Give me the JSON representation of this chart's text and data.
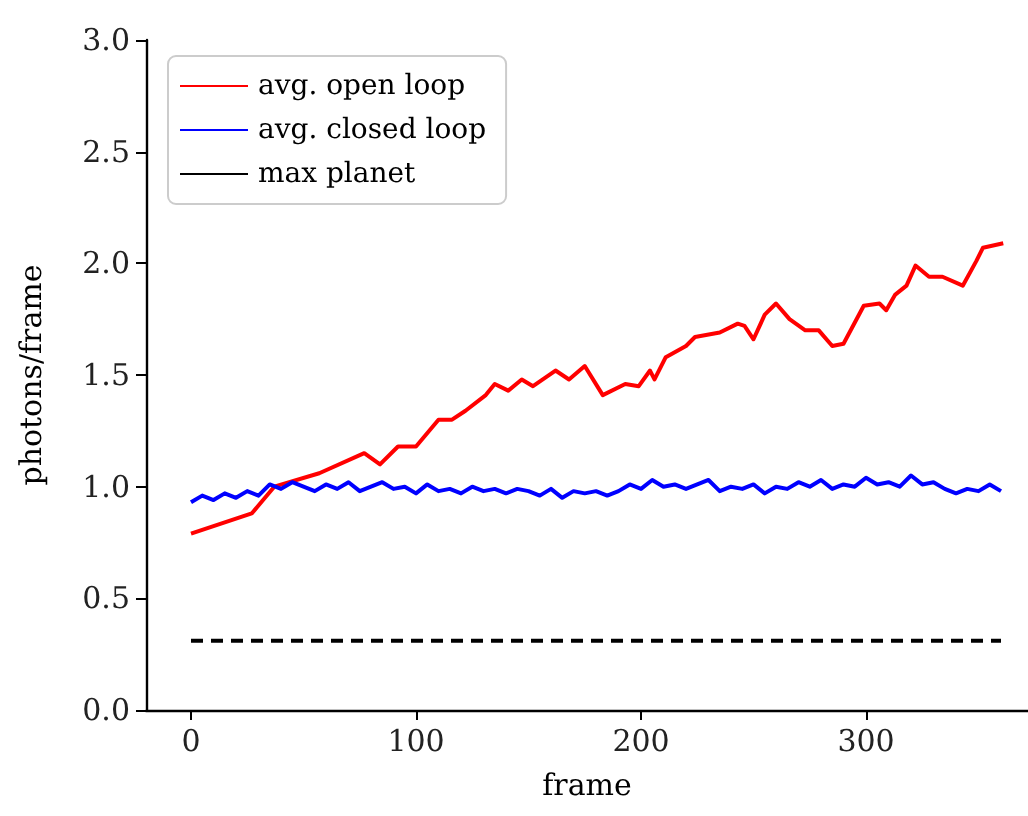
{
  "chart_data": {
    "type": "line",
    "xlabel": "frame",
    "ylabel": "photons/frame",
    "xlim": [
      -20,
      372
    ],
    "ylim": [
      0,
      3.0
    ],
    "xticks": [
      0,
      100,
      200,
      300
    ],
    "yticks": [
      {
        "value": 0,
        "label": "0.0"
      },
      {
        "value": 0.5,
        "label": "0.5"
      },
      {
        "value": 1,
        "label": "1.0"
      },
      {
        "value": 1.5,
        "label": "1.5"
      },
      {
        "value": 2,
        "label": "2.0"
      },
      {
        "value": 2.5,
        "label": "2.5"
      },
      {
        "value": 3,
        "label": "3.0"
      }
    ],
    "grid": false,
    "legend": "top left",
    "marker": "none",
    "series": [
      {
        "name": "avg. open loop",
        "color": "#ff0000",
        "line_style": "solid",
        "x": [
          0,
          27,
          37,
          57,
          77,
          84,
          92,
          100,
          110,
          116,
          122,
          131,
          135,
          141,
          147,
          152,
          162,
          168,
          175,
          183,
          193,
          199,
          204,
          206,
          211,
          220,
          224,
          235,
          243,
          246,
          250,
          255,
          260,
          266,
          273,
          279,
          285,
          290,
          299,
          306,
          309,
          313,
          318,
          322,
          328,
          334,
          343,
          349,
          352,
          361
        ],
        "values": [
          0.79,
          0.88,
          1.0,
          1.06,
          1.15,
          1.1,
          1.18,
          1.18,
          1.3,
          1.3,
          1.34,
          1.41,
          1.46,
          1.43,
          1.48,
          1.45,
          1.52,
          1.48,
          1.54,
          1.41,
          1.46,
          1.45,
          1.52,
          1.48,
          1.58,
          1.63,
          1.67,
          1.69,
          1.73,
          1.72,
          1.66,
          1.77,
          1.82,
          1.75,
          1.7,
          1.7,
          1.63,
          1.64,
          1.81,
          1.82,
          1.79,
          1.86,
          1.9,
          1.99,
          1.94,
          1.94,
          1.9,
          2.01,
          2.07,
          2.09
        ]
      },
      {
        "name": "avg. closed loop",
        "color": "#0000ff",
        "line_style": "solid",
        "x": [
          0,
          5,
          10,
          15,
          20,
          25,
          30,
          35,
          40,
          45,
          50,
          55,
          60,
          65,
          70,
          75,
          80,
          85,
          90,
          95,
          100,
          105,
          110,
          115,
          120,
          125,
          130,
          135,
          140,
          145,
          150,
          155,
          160,
          165,
          170,
          175,
          180,
          185,
          190,
          195,
          200,
          205,
          210,
          215,
          220,
          225,
          230,
          235,
          240,
          245,
          250,
          255,
          260,
          265,
          270,
          275,
          280,
          285,
          290,
          295,
          300,
          305,
          310,
          315,
          320,
          325,
          330,
          335,
          340,
          345,
          350,
          355,
          360
        ],
        "values": [
          0.93,
          0.96,
          0.94,
          0.97,
          0.95,
          0.98,
          0.96,
          1.01,
          0.99,
          1.02,
          1.0,
          0.98,
          1.01,
          0.99,
          1.02,
          0.98,
          1.0,
          1.02,
          0.99,
          1.0,
          0.97,
          1.01,
          0.98,
          0.99,
          0.97,
          1.0,
          0.98,
          0.99,
          0.97,
          0.99,
          0.98,
          0.96,
          0.99,
          0.95,
          0.98,
          0.97,
          0.98,
          0.96,
          0.98,
          1.01,
          0.99,
          1.03,
          1.0,
          1.01,
          0.99,
          1.01,
          1.03,
          0.98,
          1.0,
          0.99,
          1.01,
          0.97,
          1.0,
          0.99,
          1.02,
          1.0,
          1.03,
          0.99,
          1.01,
          1.0,
          1.04,
          1.01,
          1.02,
          1.0,
          1.05,
          1.01,
          1.02,
          0.99,
          0.97,
          0.99,
          0.98,
          1.01,
          0.98
        ]
      },
      {
        "name": "max planet",
        "color": "#000000",
        "line_style": "dashed",
        "x": [
          0,
          360
        ],
        "values": [
          0.31,
          0.31
        ]
      }
    ]
  }
}
